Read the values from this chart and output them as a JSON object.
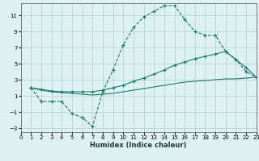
{
  "xlabel": "Humidex (Indice chaleur)",
  "bg_color": "#dff2f2",
  "grid_color": "#b8d8d8",
  "line_color": "#1a7a6e",
  "xlim": [
    0,
    23
  ],
  "ylim": [
    -3.5,
    12.5
  ],
  "xticks": [
    0,
    1,
    2,
    3,
    4,
    5,
    6,
    7,
    8,
    9,
    10,
    11,
    12,
    13,
    14,
    15,
    16,
    17,
    18,
    19,
    20,
    21,
    22,
    23
  ],
  "yticks": [
    -3,
    -1,
    1,
    3,
    5,
    7,
    9,
    11
  ],
  "line1_x": [
    1,
    2,
    3,
    4,
    5,
    6,
    7,
    8,
    9,
    10,
    11,
    12,
    13,
    14,
    15,
    16,
    17,
    18,
    19,
    20,
    21,
    22,
    23
  ],
  "line1_y": [
    2.0,
    0.3,
    0.3,
    0.3,
    -1.2,
    -1.7,
    -2.8,
    1.5,
    4.2,
    7.3,
    9.5,
    10.8,
    11.5,
    12.2,
    12.2,
    10.5,
    9.0,
    8.5,
    8.5,
    6.5,
    5.5,
    4.0,
    3.3
  ],
  "line2_x": [
    1,
    2,
    3,
    4,
    5,
    6,
    7,
    8,
    9,
    10,
    11,
    12,
    13,
    14,
    15,
    16,
    17,
    18,
    19,
    20,
    21,
    22,
    23
  ],
  "line2_y": [
    2.0,
    1.8,
    1.6,
    1.5,
    1.5,
    1.5,
    1.5,
    1.7,
    2.0,
    2.3,
    2.8,
    3.2,
    3.7,
    4.2,
    4.8,
    5.2,
    5.6,
    5.9,
    6.2,
    6.5,
    5.5,
    4.5,
    3.3
  ],
  "line3_x": [
    1,
    2,
    3,
    4,
    5,
    6,
    7,
    8,
    9,
    10,
    11,
    12,
    13,
    14,
    15,
    16,
    17,
    18,
    19,
    20,
    21,
    22,
    23
  ],
  "line3_y": [
    2.0,
    1.7,
    1.5,
    1.4,
    1.3,
    1.2,
    1.1,
    1.2,
    1.3,
    1.5,
    1.7,
    1.9,
    2.1,
    2.3,
    2.5,
    2.7,
    2.8,
    2.9,
    3.0,
    3.1,
    3.1,
    3.2,
    3.3
  ]
}
